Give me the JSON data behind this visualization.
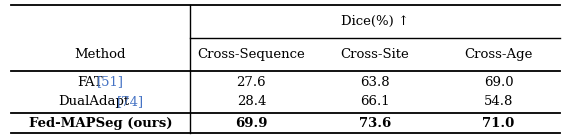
{
  "dice_header": "Dice(%) ↑",
  "col_headers": [
    "Method",
    "Cross-Sequence",
    "Cross-Site",
    "Cross-Age"
  ],
  "rows": [
    {
      "base": "FAT",
      "ref": "[51]",
      "ref_color": "#4472C4",
      "values": [
        "27.6",
        "63.8",
        "69.0"
      ],
      "bold": false
    },
    {
      "base": "DualAdapt",
      "ref": "[74]",
      "ref_color": "#4472C4",
      "values": [
        "28.4",
        "66.1",
        "54.8"
      ],
      "bold": false
    },
    {
      "base": "Fed-MAPSeg (ours)",
      "ref": "",
      "ref_color": null,
      "values": [
        "69.9",
        "73.6",
        "71.0"
      ],
      "bold": true
    }
  ],
  "background_color": "#ffffff",
  "font_size": 9.5,
  "header_font_size": 9.5,
  "line_color": "#000000",
  "line_lw": 1.0
}
